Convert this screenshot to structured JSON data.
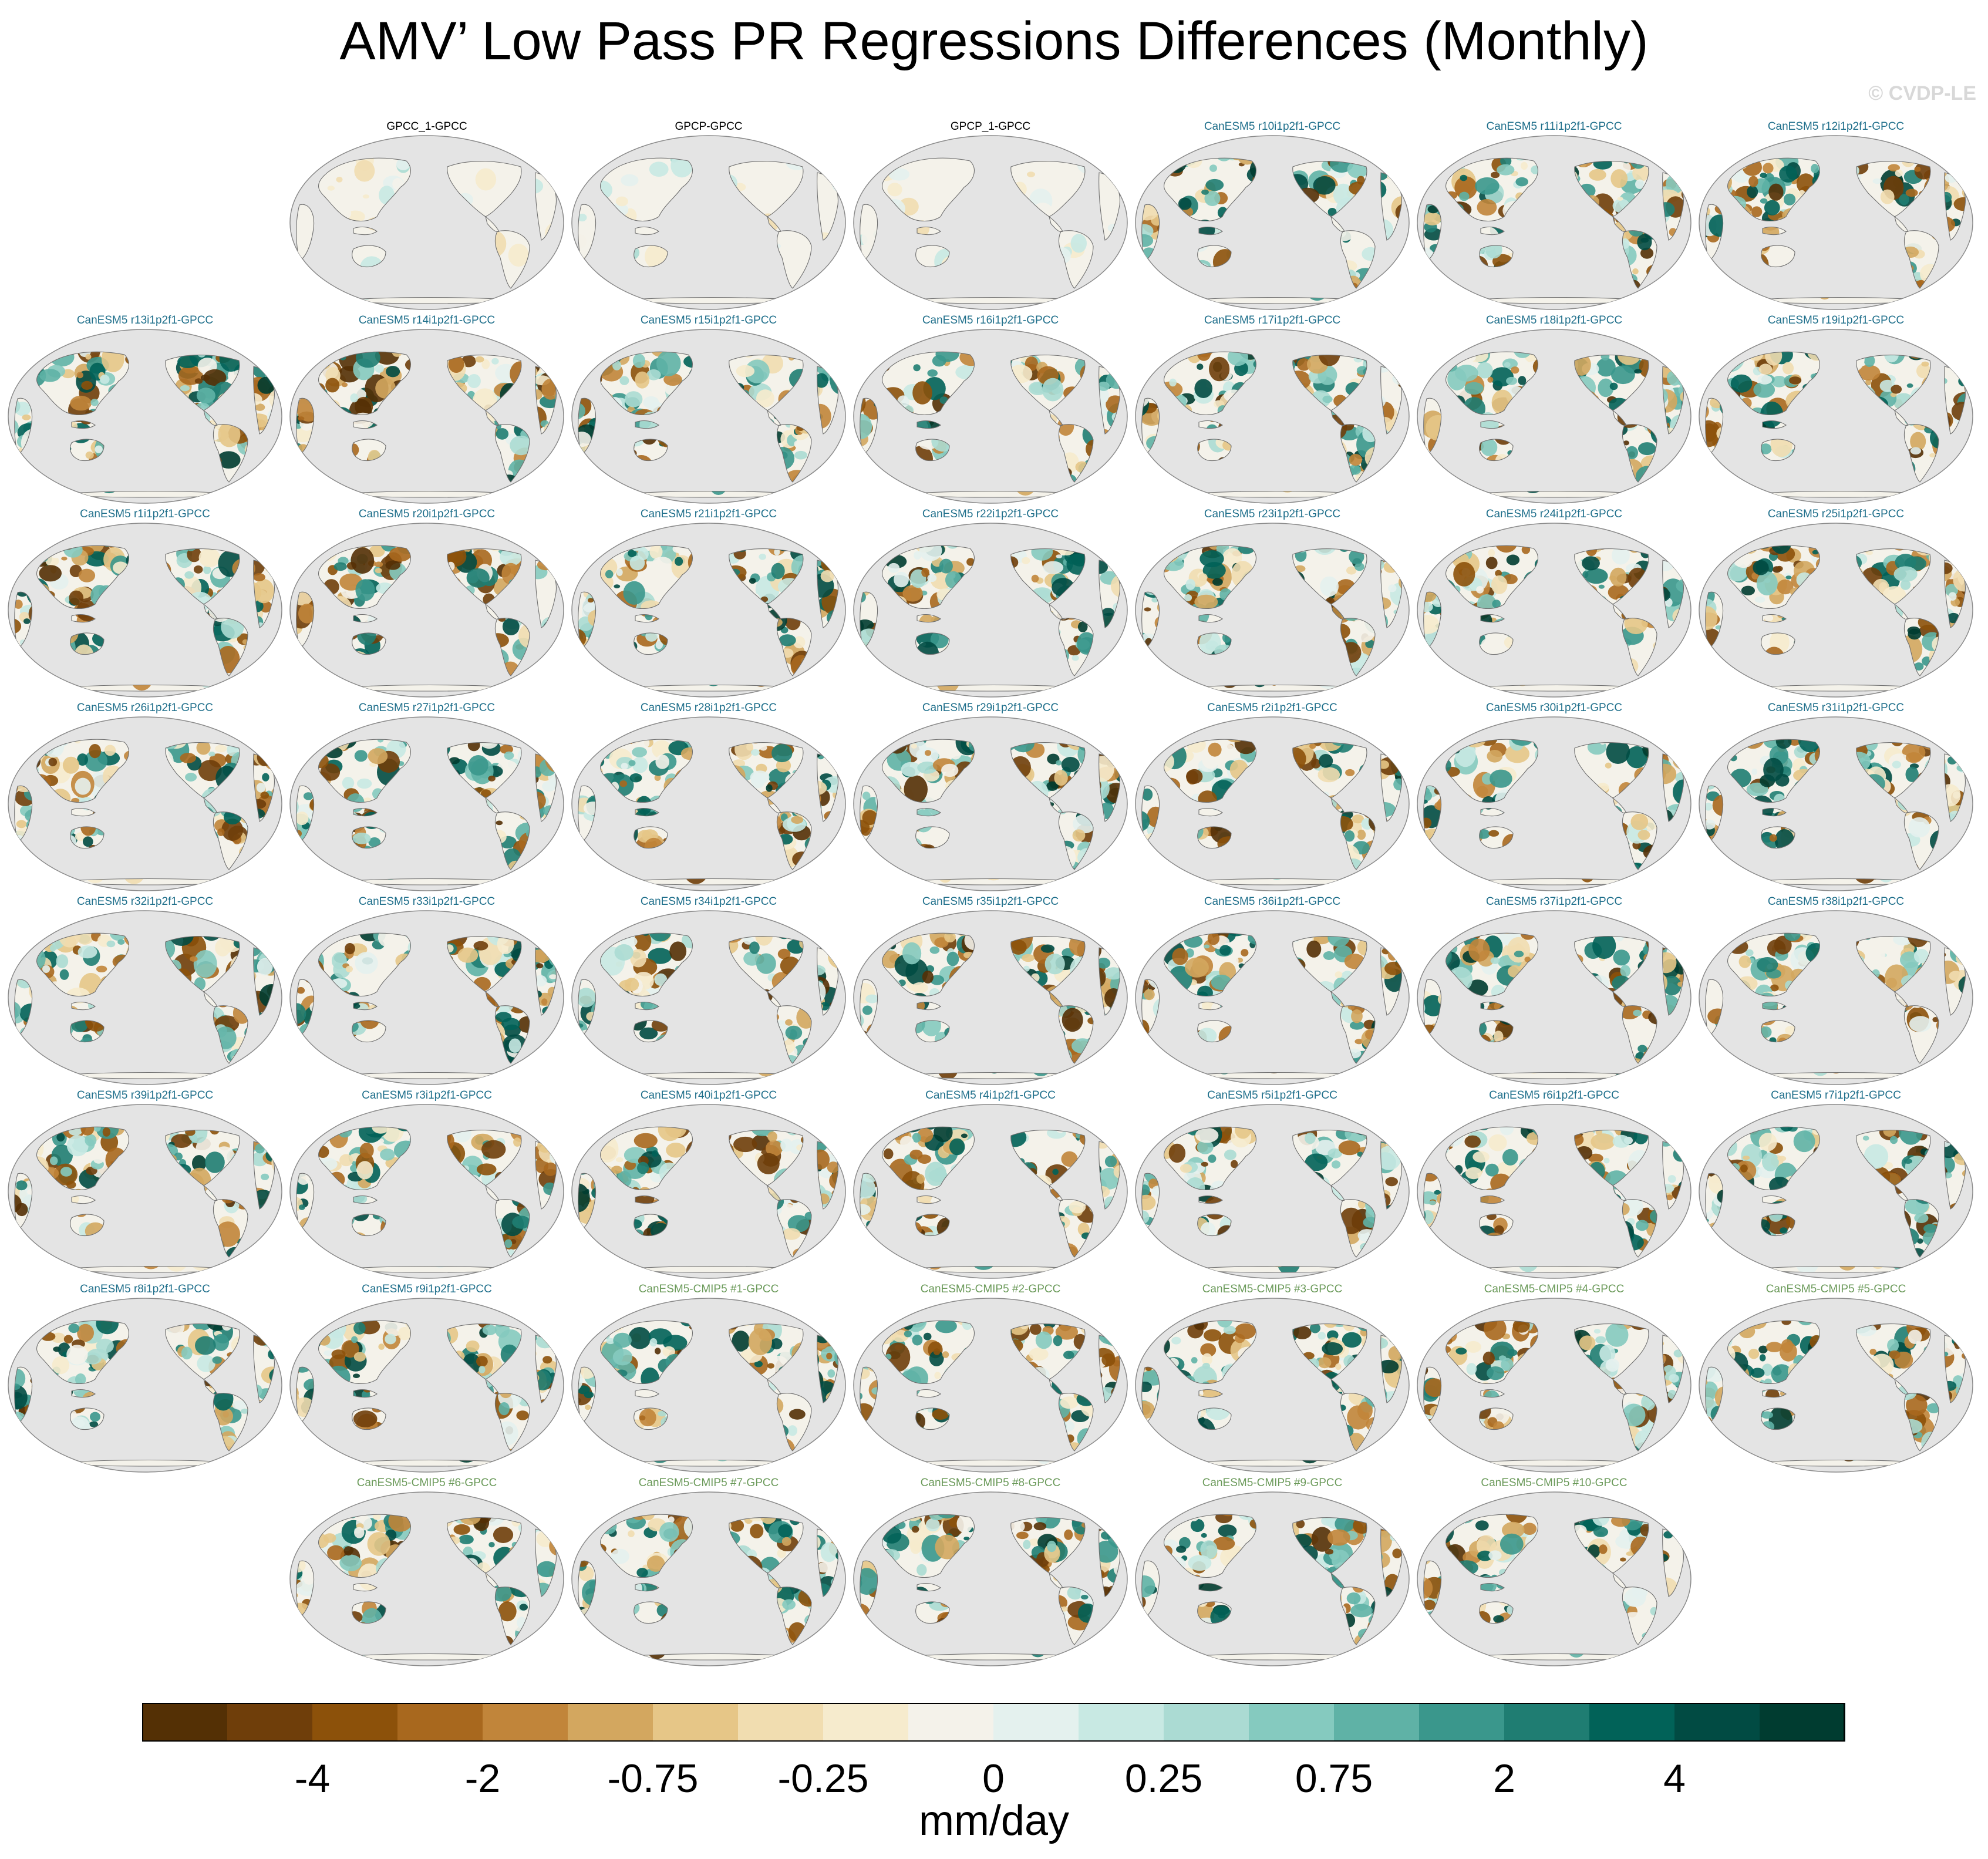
{
  "title": "AMV’ Low Pass PR Regressions Differences (Monthly)",
  "watermark": "© CVDP-LE",
  "panels": [
    {
      "label": "GPCC_1-GPCC",
      "kind": "obs"
    },
    {
      "label": "GPCP-GPCC",
      "kind": "obs"
    },
    {
      "label": "GPCP_1-GPCC",
      "kind": "obs"
    },
    {
      "label": "CanESM5 r10i1p2f1-GPCC",
      "kind": "mem"
    },
    {
      "label": "CanESM5 r11i1p2f1-GPCC",
      "kind": "mem"
    },
    {
      "label": "CanESM5 r12i1p2f1-GPCC",
      "kind": "mem"
    },
    {
      "label": "CanESM5 r13i1p2f1-GPCC",
      "kind": "mem"
    },
    {
      "label": "CanESM5 r14i1p2f1-GPCC",
      "kind": "mem"
    },
    {
      "label": "CanESM5 r15i1p2f1-GPCC",
      "kind": "mem"
    },
    {
      "label": "CanESM5 r16i1p2f1-GPCC",
      "kind": "mem"
    },
    {
      "label": "CanESM5 r17i1p2f1-GPCC",
      "kind": "mem"
    },
    {
      "label": "CanESM5 r18i1p2f1-GPCC",
      "kind": "mem"
    },
    {
      "label": "CanESM5 r19i1p2f1-GPCC",
      "kind": "mem"
    },
    {
      "label": "CanESM5 r1i1p2f1-GPCC",
      "kind": "mem"
    },
    {
      "label": "CanESM5 r20i1p2f1-GPCC",
      "kind": "mem"
    },
    {
      "label": "CanESM5 r21i1p2f1-GPCC",
      "kind": "mem"
    },
    {
      "label": "CanESM5 r22i1p2f1-GPCC",
      "kind": "mem"
    },
    {
      "label": "CanESM5 r23i1p2f1-GPCC",
      "kind": "mem"
    },
    {
      "label": "CanESM5 r24i1p2f1-GPCC",
      "kind": "mem"
    },
    {
      "label": "CanESM5 r25i1p2f1-GPCC",
      "kind": "mem"
    },
    {
      "label": "CanESM5 r26i1p2f1-GPCC",
      "kind": "mem"
    },
    {
      "label": "CanESM5 r27i1p2f1-GPCC",
      "kind": "mem"
    },
    {
      "label": "CanESM5 r28i1p2f1-GPCC",
      "kind": "mem"
    },
    {
      "label": "CanESM5 r29i1p2f1-GPCC",
      "kind": "mem"
    },
    {
      "label": "CanESM5 r2i1p2f1-GPCC",
      "kind": "mem"
    },
    {
      "label": "CanESM5 r30i1p2f1-GPCC",
      "kind": "mem"
    },
    {
      "label": "CanESM5 r31i1p2f1-GPCC",
      "kind": "mem"
    },
    {
      "label": "CanESM5 r32i1p2f1-GPCC",
      "kind": "mem"
    },
    {
      "label": "CanESM5 r33i1p2f1-GPCC",
      "kind": "mem"
    },
    {
      "label": "CanESM5 r34i1p2f1-GPCC",
      "kind": "mem"
    },
    {
      "label": "CanESM5 r35i1p2f1-GPCC",
      "kind": "mem"
    },
    {
      "label": "CanESM5 r36i1p2f1-GPCC",
      "kind": "mem"
    },
    {
      "label": "CanESM5 r37i1p2f1-GPCC",
      "kind": "mem"
    },
    {
      "label": "CanESM5 r38i1p2f1-GPCC",
      "kind": "mem"
    },
    {
      "label": "CanESM5 r39i1p2f1-GPCC",
      "kind": "mem"
    },
    {
      "label": "CanESM5 r3i1p2f1-GPCC",
      "kind": "mem"
    },
    {
      "label": "CanESM5 r40i1p2f1-GPCC",
      "kind": "mem"
    },
    {
      "label": "CanESM5 r4i1p2f1-GPCC",
      "kind": "mem"
    },
    {
      "label": "CanESM5 r5i1p2f1-GPCC",
      "kind": "mem"
    },
    {
      "label": "CanESM5 r6i1p2f1-GPCC",
      "kind": "mem"
    },
    {
      "label": "CanESM5 r7i1p2f1-GPCC",
      "kind": "mem"
    },
    {
      "label": "CanESM5 r8i1p2f1-GPCC",
      "kind": "mem"
    },
    {
      "label": "CanESM5 r9i1p2f1-GPCC",
      "kind": "mem"
    },
    {
      "label": "CanESM5-CMIP5 #1-GPCC",
      "kind": "cmip"
    },
    {
      "label": "CanESM5-CMIP5 #2-GPCC",
      "kind": "cmip"
    },
    {
      "label": "CanESM5-CMIP5 #3-GPCC",
      "kind": "cmip"
    },
    {
      "label": "CanESM5-CMIP5 #4-GPCC",
      "kind": "cmip"
    },
    {
      "label": "CanESM5-CMIP5 #5-GPCC",
      "kind": "cmip"
    },
    {
      "label": "CanESM5-CMIP5 #6-GPCC",
      "kind": "cmip"
    },
    {
      "label": "CanESM5-CMIP5 #7-GPCC",
      "kind": "cmip"
    },
    {
      "label": "CanESM5-CMIP5 #8-GPCC",
      "kind": "cmip"
    },
    {
      "label": "CanESM5-CMIP5 #9-GPCC",
      "kind": "cmip"
    },
    {
      "label": "CanESM5-CMIP5 #10-GPCC",
      "kind": "cmip"
    }
  ],
  "colorbar": {
    "colors": [
      "#543005",
      "#6f3e0a",
      "#8c510a",
      "#a8681e",
      "#c1853a",
      "#d3a75f",
      "#e6c687",
      "#f1ddb0",
      "#f6ebcd",
      "#f4f2ea",
      "#e4f1ee",
      "#c8e9e3",
      "#abdbd3",
      "#85cabf",
      "#5fb2a6",
      "#3a978c",
      "#1f7d72",
      "#016258",
      "#014b43",
      "#003c30"
    ],
    "ticks": [
      "-4",
      "-2",
      "-0.75",
      "-0.25",
      "0",
      "0.25",
      "0.75",
      "2",
      "4"
    ],
    "units": "mm/day"
  }
}
